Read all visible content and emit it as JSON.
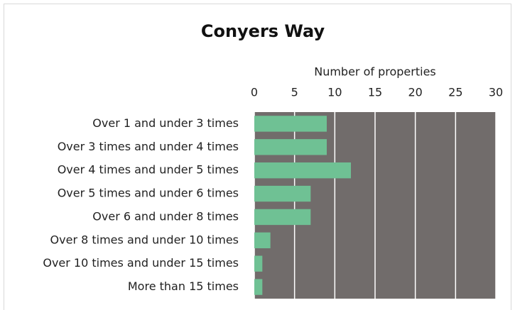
{
  "chart_data": {
    "type": "bar",
    "orientation": "horizontal",
    "title": "Conyers Way",
    "x_label": "Number of properties",
    "categories": [
      "Over 1 and under 3 times",
      "Over 3 times and under 4 times",
      "Over 4 times and under 5 times",
      "Over 5 times and under 6 times",
      "Over 6 and under 8 times",
      "Over 8 times and under 10 times",
      "Over 10 times and under 15 times",
      "More than 15 times"
    ],
    "values": [
      9,
      9,
      12,
      7,
      7,
      2,
      1,
      1
    ],
    "color": "#6fc194",
    "plot_background": "#716c6b",
    "xlim": [
      0,
      30
    ],
    "xticks": [
      0,
      5,
      10,
      15,
      20,
      25,
      30
    ],
    "grid": true
  }
}
